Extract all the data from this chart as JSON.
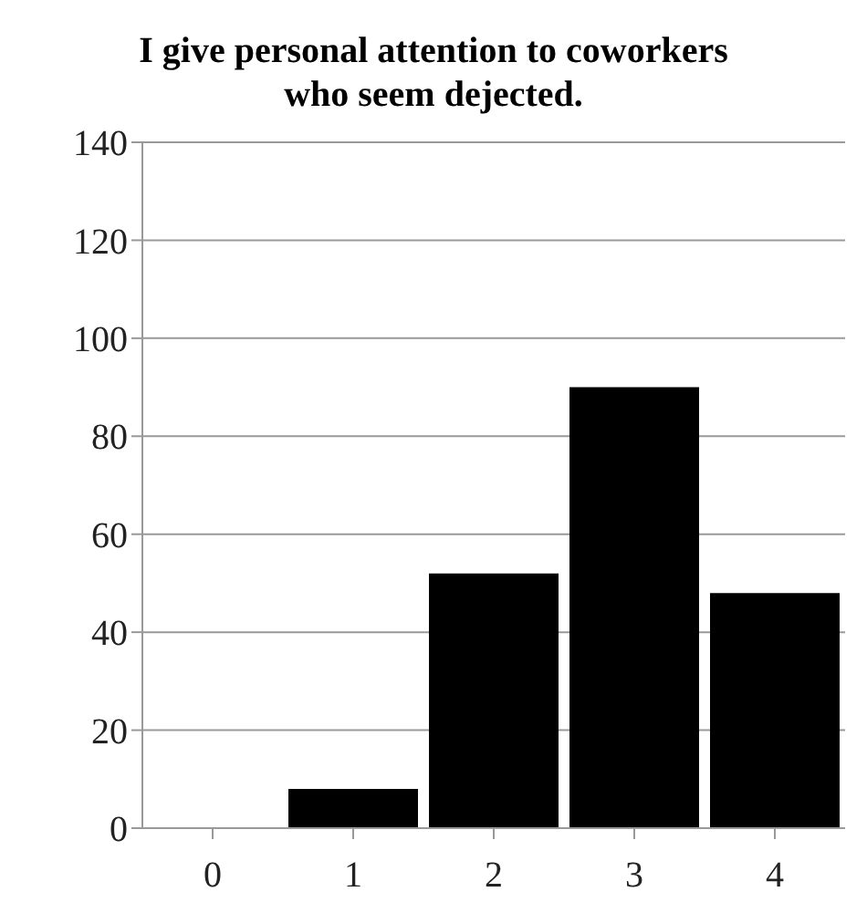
{
  "chart_data": {
    "type": "bar",
    "title": "I give personal attention to coworkers who seem dejected.",
    "categories": [
      "0",
      "1",
      "2",
      "3",
      "4"
    ],
    "values": [
      0,
      8,
      52,
      90,
      48
    ],
    "color": "#000000",
    "ylim": [
      0,
      140
    ],
    "yticks": [
      0,
      20,
      40,
      60,
      80,
      100,
      120,
      140
    ],
    "grid": "y"
  }
}
